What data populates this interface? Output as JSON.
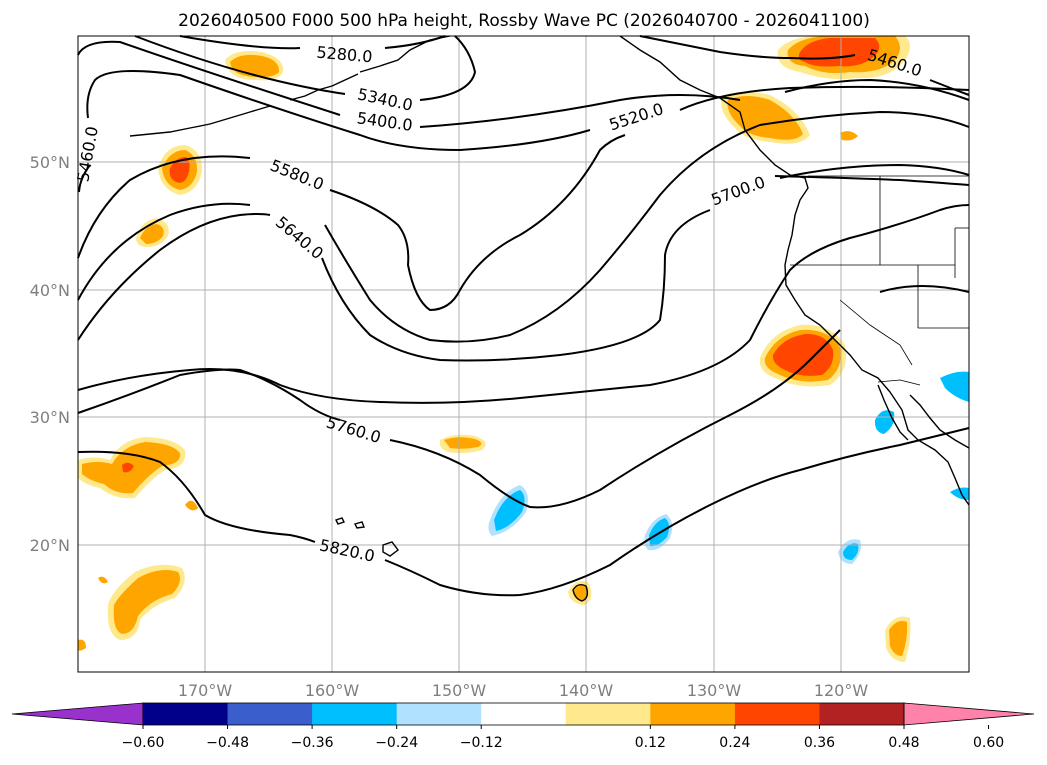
{
  "title": "2026040500 F000 500 hPa height, Rossby Wave PC (2026040700 - 2026041100)",
  "lat_labels": [
    "50°N",
    "40°N",
    "30°N",
    "20°N"
  ],
  "lon_labels": [
    "170°W",
    "160°W",
    "150°W",
    "140°W",
    "130°W",
    "120°W"
  ],
  "contour_labels": [
    "5280.0",
    "5340.0",
    "5400.0",
    "5460.0",
    "5460.0",
    "5520.0",
    "5580.0",
    "5640.0",
    "5700.0",
    "5760.0",
    "5820.0"
  ],
  "colorbar": {
    "ticks": [
      "−0.60",
      "−0.48",
      "−0.36",
      "−0.24",
      "−0.12",
      "0.12",
      "0.24",
      "0.36",
      "0.48",
      "0.60"
    ],
    "colors": [
      "#9932CC",
      "#00008B",
      "#3A5FCD",
      "#00BFFF",
      "#B0E2FF",
      "#FFFFFF",
      "#FFE98C",
      "#FFA500",
      "#FF4500",
      "#B22222",
      "#FF82AB"
    ]
  },
  "colors": {
    "height_contour": "#000000",
    "positive_low": "#FFE98C",
    "positive_mid": "#FFA500",
    "positive_high": "#FF4500",
    "negative_mid": "#00BFFF",
    "grid": "#B0B0B0",
    "label_gray": "#7F7F7F"
  }
}
